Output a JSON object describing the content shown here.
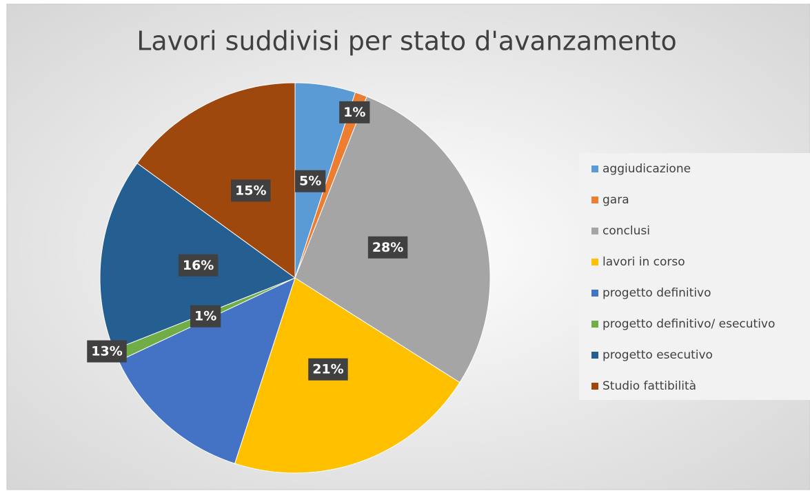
{
  "chart_data": {
    "type": "pie",
    "title": "Lavori suddivisi per stato d'avanzamento",
    "categories": [
      "aggiudicazione",
      "gara",
      "conclusi",
      "lavori in corso",
      "progetto definitivo",
      "progetto definitivo/ esecutivo",
      "progetto esecutivo",
      "Studio fattibilità"
    ],
    "values": [
      5,
      1,
      28,
      21,
      13,
      1,
      16,
      15
    ],
    "value_labels": [
      "5%",
      "1%",
      "28%",
      "21%",
      "13%",
      "1%",
      "16%",
      "15%"
    ],
    "colors": [
      "#5b9bd5",
      "#ed7d31",
      "#a5a5a5",
      "#ffc000",
      "#4472c4",
      "#70ad47",
      "#255e91",
      "#9e480e"
    ],
    "legend": "right"
  }
}
